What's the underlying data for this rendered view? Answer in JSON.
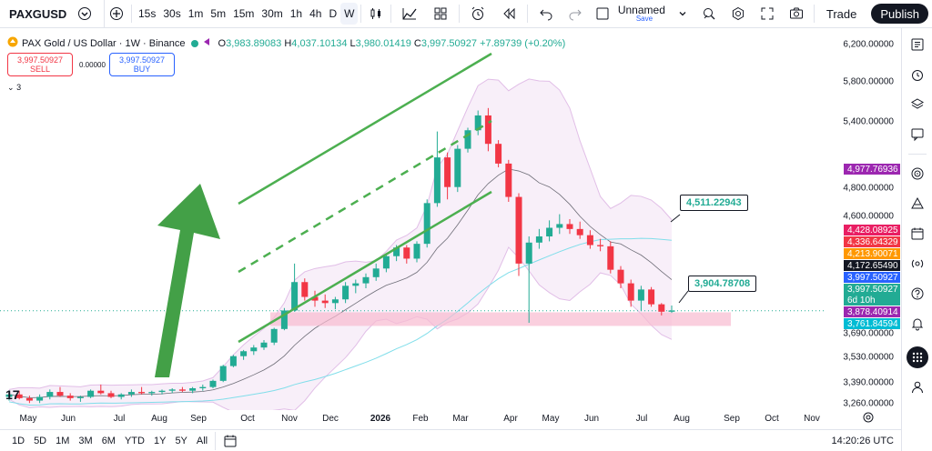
{
  "toolbar": {
    "symbol": "PAXGUSD",
    "timeframes": [
      "15s",
      "30s",
      "1m",
      "5m",
      "15m",
      "30m",
      "1h",
      "4h",
      "D",
      "W"
    ],
    "active_timeframe": "W",
    "layout_name": "Unnamed",
    "layout_status": "Save",
    "trade_label": "Trade",
    "publish_label": "Publish"
  },
  "legend": {
    "title": "PAX Gold / US Dollar · 1W · Binance",
    "open": "3,983.89083",
    "high": "4,037.10134",
    "low": "3,980.01419",
    "close": "3,997.50927",
    "change": "+7.89739 (+0.20%)",
    "sell_price": "3,997.50927",
    "sell_label": "SELL",
    "spread": "0.00000",
    "buy_price": "3,997.50927",
    "buy_label": "BUY",
    "indicator_count": "3"
  },
  "price_axis": {
    "ticks": [
      "6,200.00000",
      "5,800.00000",
      "5,400.00000",
      "4,800.00000",
      "4,600.00000",
      "3,690.00000",
      "3,530.00000",
      "3,390.00000",
      "3,260.00000"
    ],
    "badges": [
      {
        "text": "4,977.76936",
        "color": "#9c27b0"
      },
      {
        "text": "4,428.08925",
        "color": "#e91e63"
      },
      {
        "text": "4,336.64329",
        "color": "#f23645"
      },
      {
        "text": "4,213.90071",
        "color": "#ff9800"
      },
      {
        "text": "4,172.65490",
        "color": "#131722"
      },
      {
        "text": "3,997.50927",
        "color": "#2962ff"
      },
      {
        "text": "3,997.50927",
        "color": "#22ab94"
      },
      {
        "text": "6d 10h",
        "color": "#22ab94"
      },
      {
        "text": "3,878.40914",
        "color": "#9c27b0"
      },
      {
        "text": "3,761.84594",
        "color": "#00bcd4"
      }
    ]
  },
  "time_axis": {
    "ticks": [
      "May",
      "Jun",
      "Jul",
      "Aug",
      "Sep",
      "Oct",
      "Nov",
      "Dec",
      "2026",
      "Feb",
      "Mar",
      "Apr",
      "May",
      "Jun",
      "Jul",
      "Aug",
      "Sep",
      "Oct",
      "Nov"
    ]
  },
  "callouts": {
    "upper": "4,511.22943",
    "lower": "3,904.78708"
  },
  "ranges": [
    "1D",
    "5D",
    "1M",
    "3M",
    "6M",
    "YTD",
    "1Y",
    "5Y",
    "All"
  ],
  "clock": "14:20:26 UTC",
  "colors": {
    "up": "#22ab94",
    "down": "#f23645",
    "trendline": "#4caf50",
    "band": "#e1bee7"
  },
  "chart_data": {
    "type": "candlestick",
    "title": "PAX Gold / US Dollar · 1W · Binance",
    "ylim": [
      3230,
      6250
    ],
    "candles": [
      [
        3300,
        3340,
        3270,
        3320
      ],
      [
        3320,
        3350,
        3280,
        3290
      ],
      [
        3290,
        3310,
        3250,
        3270
      ],
      [
        3270,
        3320,
        3250,
        3300
      ],
      [
        3300,
        3360,
        3280,
        3340
      ],
      [
        3340,
        3380,
        3300,
        3310
      ],
      [
        3310,
        3330,
        3270,
        3290
      ],
      [
        3290,
        3310,
        3260,
        3300
      ],
      [
        3300,
        3360,
        3290,
        3350
      ],
      [
        3350,
        3400,
        3320,
        3330
      ],
      [
        3330,
        3350,
        3290,
        3300
      ],
      [
        3300,
        3330,
        3280,
        3320
      ],
      [
        3320,
        3360,
        3300,
        3340
      ],
      [
        3340,
        3380,
        3320,
        3330
      ],
      [
        3330,
        3350,
        3310,
        3340
      ],
      [
        3340,
        3360,
        3320,
        3350
      ],
      [
        3350,
        3370,
        3330,
        3360
      ],
      [
        3360,
        3380,
        3340,
        3350
      ],
      [
        3350,
        3380,
        3330,
        3370
      ],
      [
        3370,
        3400,
        3350,
        3380
      ],
      [
        3380,
        3440,
        3370,
        3430
      ],
      [
        3430,
        3560,
        3420,
        3550
      ],
      [
        3550,
        3640,
        3540,
        3630
      ],
      [
        3630,
        3680,
        3600,
        3670
      ],
      [
        3670,
        3720,
        3640,
        3700
      ],
      [
        3700,
        3760,
        3680,
        3740
      ],
      [
        3740,
        3860,
        3720,
        3850
      ],
      [
        3850,
        4020,
        3840,
        4000
      ],
      [
        4000,
        4380,
        3990,
        4230
      ],
      [
        4230,
        4260,
        4080,
        4110
      ],
      [
        4110,
        4160,
        4030,
        4080
      ],
      [
        4080,
        4130,
        4020,
        4060
      ],
      [
        4060,
        4110,
        4010,
        4090
      ],
      [
        4090,
        4230,
        4060,
        4200
      ],
      [
        4200,
        4250,
        4140,
        4220
      ],
      [
        4220,
        4300,
        4180,
        4270
      ],
      [
        4270,
        4380,
        4240,
        4340
      ],
      [
        4340,
        4460,
        4310,
        4440
      ],
      [
        4440,
        4530,
        4400,
        4510
      ],
      [
        4510,
        4530,
        4380,
        4420
      ],
      [
        4420,
        4560,
        4390,
        4540
      ],
      [
        4540,
        4900,
        4510,
        4870
      ],
      [
        4870,
        5450,
        4840,
        5240
      ],
      [
        5240,
        5280,
        4900,
        5000
      ],
      [
        5000,
        5340,
        4960,
        5310
      ],
      [
        5310,
        5480,
        5280,
        5460
      ],
      [
        5460,
        5620,
        5420,
        5580
      ],
      [
        5580,
        5640,
        5290,
        5350
      ],
      [
        5350,
        5380,
        5160,
        5190
      ],
      [
        5190,
        5220,
        4880,
        4920
      ],
      [
        4920,
        4950,
        4280,
        4380
      ],
      [
        4380,
        4600,
        3900,
        4550
      ],
      [
        4550,
        4660,
        4500,
        4600
      ],
      [
        4600,
        4730,
        4560,
        4670
      ],
      [
        4670,
        4780,
        4620,
        4700
      ],
      [
        4700,
        4740,
        4620,
        4660
      ],
      [
        4660,
        4720,
        4580,
        4610
      ],
      [
        4610,
        4650,
        4500,
        4530
      ],
      [
        4530,
        4580,
        4480,
        4520
      ],
      [
        4520,
        4560,
        4300,
        4330
      ],
      [
        4330,
        4360,
        4180,
        4220
      ],
      [
        4220,
        4250,
        4030,
        4080
      ],
      [
        4080,
        4200,
        4000,
        4170
      ],
      [
        4170,
        4190,
        4030,
        4050
      ],
      [
        4050,
        4060,
        3960,
        3990
      ],
      [
        3990,
        4040,
        3980,
        4000
      ]
    ]
  }
}
